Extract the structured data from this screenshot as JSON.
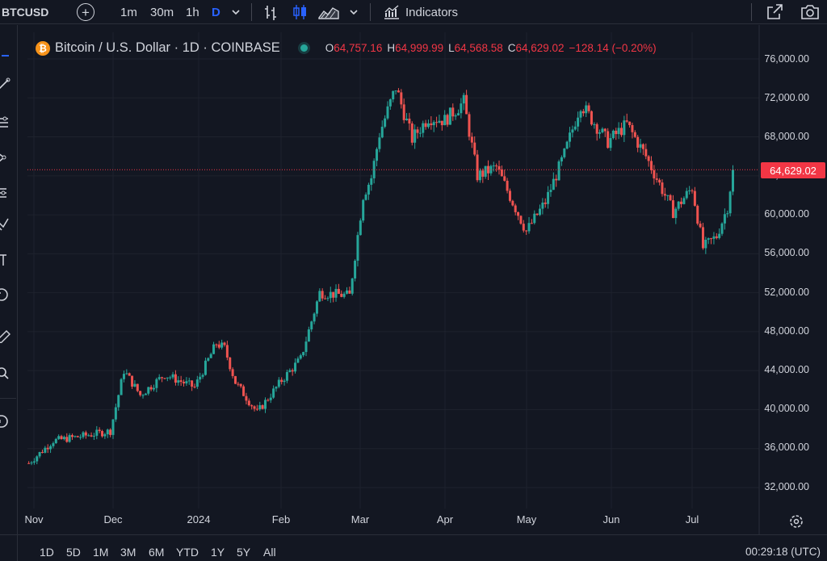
{
  "toolbar": {
    "symbol": "BTCUSD",
    "intervals": [
      "1m",
      "30m",
      "1h",
      "D"
    ],
    "active_interval": "D",
    "indicators_label": "Indicators"
  },
  "legend": {
    "title": "Bitcoin / U.S. Dollar · 1D · COINBASE",
    "open_label": "O",
    "open": "64,757.16",
    "high_label": "H",
    "high": "64,999.99",
    "low_label": "L",
    "low": "64,568.58",
    "close_label": "C",
    "close": "64,629.02",
    "change": "−128.14 (−0.20%)"
  },
  "price_axis": {
    "labels": [
      "76,000.00",
      "72,000.00",
      "68,000.00",
      "64,000.00",
      "60,000.00",
      "56,000.00",
      "52,000.00",
      "48,000.00",
      "44,000.00",
      "40,000.00",
      "36,000.00",
      "32,000.00"
    ],
    "last_price": "64,629.02"
  },
  "time_axis": {
    "labels": [
      "Nov",
      "Dec",
      "2024",
      "Feb",
      "Mar",
      "Apr",
      "May",
      "Jun",
      "Jul"
    ]
  },
  "ranges": [
    "1D",
    "5D",
    "1M",
    "3M",
    "6M",
    "YTD",
    "1Y",
    "5Y",
    "All"
  ],
  "clock": "00:29:18 (UTC)",
  "colors": {
    "up": "#26a69a",
    "down": "#ef5350",
    "background": "#131722",
    "grid": "#1e222d",
    "accent": "#2962ff"
  },
  "chart_data": {
    "type": "candlestick",
    "title": "Bitcoin / U.S. Dollar · 1D · COINBASE",
    "ylim": [
      30000,
      78000
    ],
    "last_close": 64629.02,
    "series_price_path": [
      [
        "2023-10-31",
        34500
      ],
      [
        "2023-11-09",
        36800
      ],
      [
        "2023-11-20",
        37300
      ],
      [
        "2023-11-30",
        37800
      ],
      [
        "2023-12-05",
        44000
      ],
      [
        "2023-12-11",
        41500
      ],
      [
        "2023-12-20",
        43600
      ],
      [
        "2023-12-31",
        42300
      ],
      [
        "2024-01-08",
        46800
      ],
      [
        "2024-01-11",
        46300
      ],
      [
        "2024-01-15",
        42800
      ],
      [
        "2024-01-23",
        39700
      ],
      [
        "2024-02-01",
        43000
      ],
      [
        "2024-02-08",
        45200
      ],
      [
        "2024-02-15",
        52000
      ],
      [
        "2024-02-26",
        51700
      ],
      [
        "2024-03-02",
        62000
      ],
      [
        "2024-03-05",
        63800
      ],
      [
        "2024-03-08",
        68300
      ],
      [
        "2024-03-14",
        73100
      ],
      [
        "2024-03-20",
        67800
      ],
      [
        "2024-03-26",
        70000
      ],
      [
        "2024-04-01",
        69700
      ],
      [
        "2024-04-08",
        71600
      ],
      [
        "2024-04-13",
        64000
      ],
      [
        "2024-04-20",
        64900
      ],
      [
        "2024-05-01",
        58300
      ],
      [
        "2024-05-08",
        61300
      ],
      [
        "2024-05-15",
        66200
      ],
      [
        "2024-05-21",
        71400
      ],
      [
        "2024-05-31",
        67500
      ],
      [
        "2024-06-07",
        69300
      ],
      [
        "2024-06-14",
        66000
      ],
      [
        "2024-06-24",
        60300
      ],
      [
        "2024-07-01",
        62800
      ],
      [
        "2024-07-05",
        56600
      ],
      [
        "2024-07-10",
        57800
      ],
      [
        "2024-07-14",
        60800
      ],
      [
        "2024-07-16",
        64629
      ]
    ]
  }
}
